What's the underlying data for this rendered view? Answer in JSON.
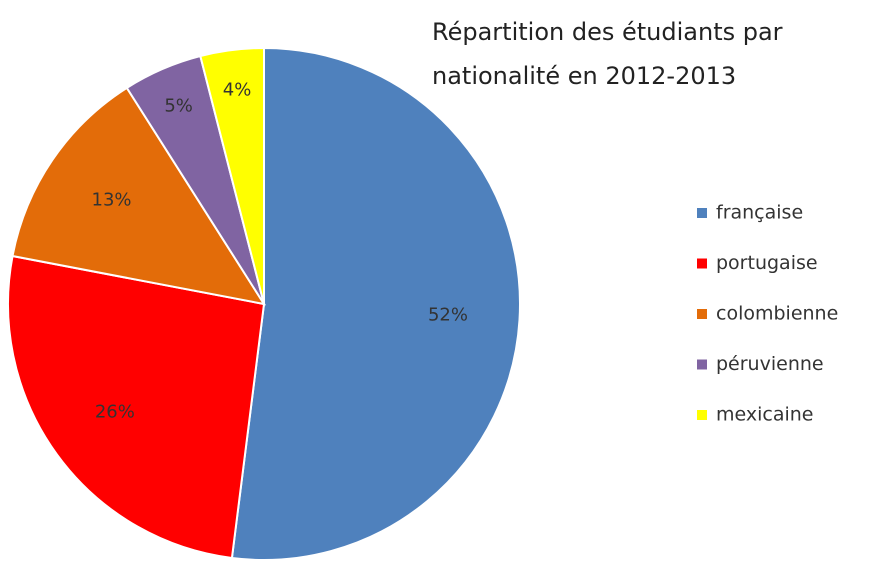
{
  "chart_data": {
    "type": "pie",
    "title": "Répartition des étudiants par nationalité en 2012-2013",
    "categories": [
      "française",
      "portugaise",
      "colombienne",
      "péruvienne",
      "mexicaine"
    ],
    "values": [
      52,
      26,
      13,
      5,
      4
    ],
    "value_labels": [
      "52%",
      "26%",
      "13%",
      "5%",
      "4%"
    ],
    "colors": [
      "#4f81bd",
      "#ff0000",
      "#e36c09",
      "#8064a2",
      "#ffff00"
    ],
    "legend": "right"
  }
}
